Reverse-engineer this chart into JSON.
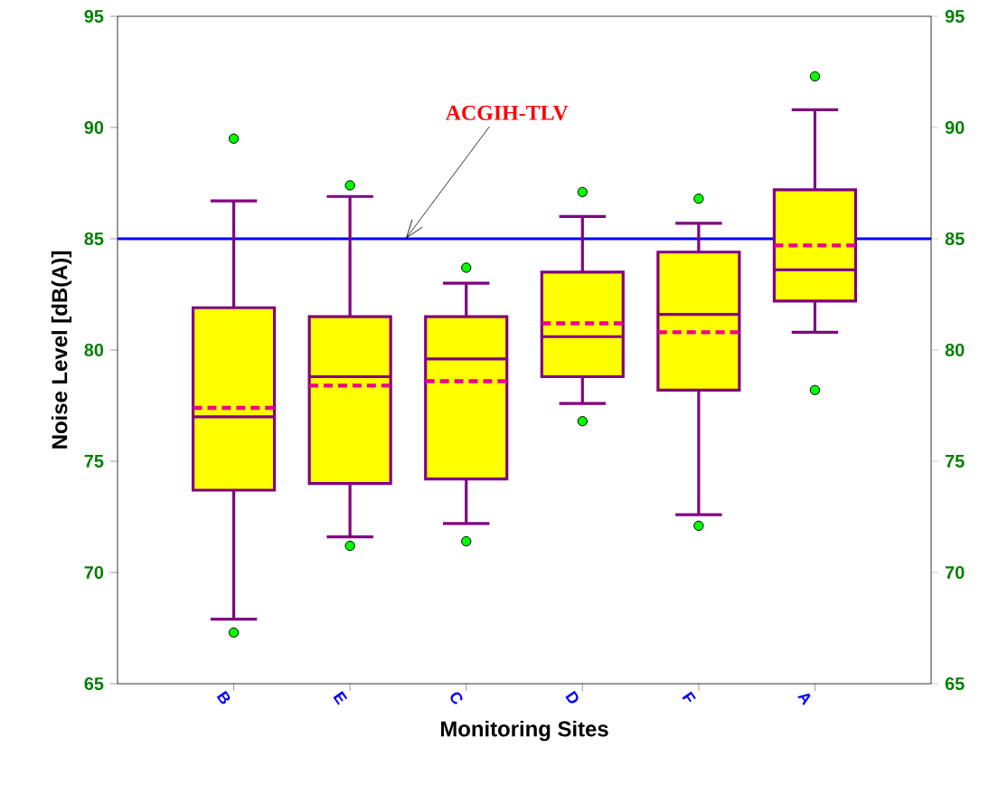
{
  "chart_data": {
    "type": "box",
    "xlabel": "Monitoring Sites",
    "ylabel": "Noise Level [dB(A)]",
    "categories": [
      "B",
      "E",
      "C",
      "D",
      "F",
      "A"
    ],
    "color": "#ffff00",
    "boxes": [
      {
        "low": 67.9,
        "q1": 73.7,
        "median": 77.0,
        "q3": 81.9,
        "high": 86.7,
        "mean": 77.4,
        "outliers": [
          89.5,
          67.3
        ]
      },
      {
        "low": 71.6,
        "q1": 74.0,
        "median": 78.8,
        "q3": 81.5,
        "high": 86.9,
        "mean": 78.4,
        "outliers": [
          87.4,
          71.2
        ]
      },
      {
        "low": 72.2,
        "q1": 74.2,
        "median": 79.6,
        "q3": 81.5,
        "high": 83.0,
        "mean": 78.6,
        "outliers": [
          83.7,
          71.4
        ]
      },
      {
        "low": 77.6,
        "q1": 78.8,
        "median": 80.6,
        "q3": 83.5,
        "high": 86.0,
        "mean": 81.2,
        "outliers": [
          87.1,
          76.8
        ]
      },
      {
        "low": 72.6,
        "q1": 78.2,
        "median": 81.6,
        "q3": 84.4,
        "high": 85.7,
        "mean": 80.8,
        "outliers": [
          86.8,
          72.1
        ]
      },
      {
        "low": 80.8,
        "q1": 82.2,
        "median": 83.6,
        "q3": 87.2,
        "high": 90.8,
        "mean": 84.7,
        "outliers": [
          92.3,
          78.2
        ]
      }
    ],
    "ylim": [
      65,
      95
    ],
    "yticks": [
      65,
      70,
      75,
      80,
      85,
      90,
      95
    ],
    "y2lim": [
      65,
      95
    ],
    "y2ticks": [
      65,
      70,
      75,
      80,
      85,
      90,
      95
    ],
    "ref_lines": [
      {
        "axis": "y",
        "value": 85,
        "label": "ACGIH-TLV",
        "color": "#0000ff"
      }
    ]
  }
}
